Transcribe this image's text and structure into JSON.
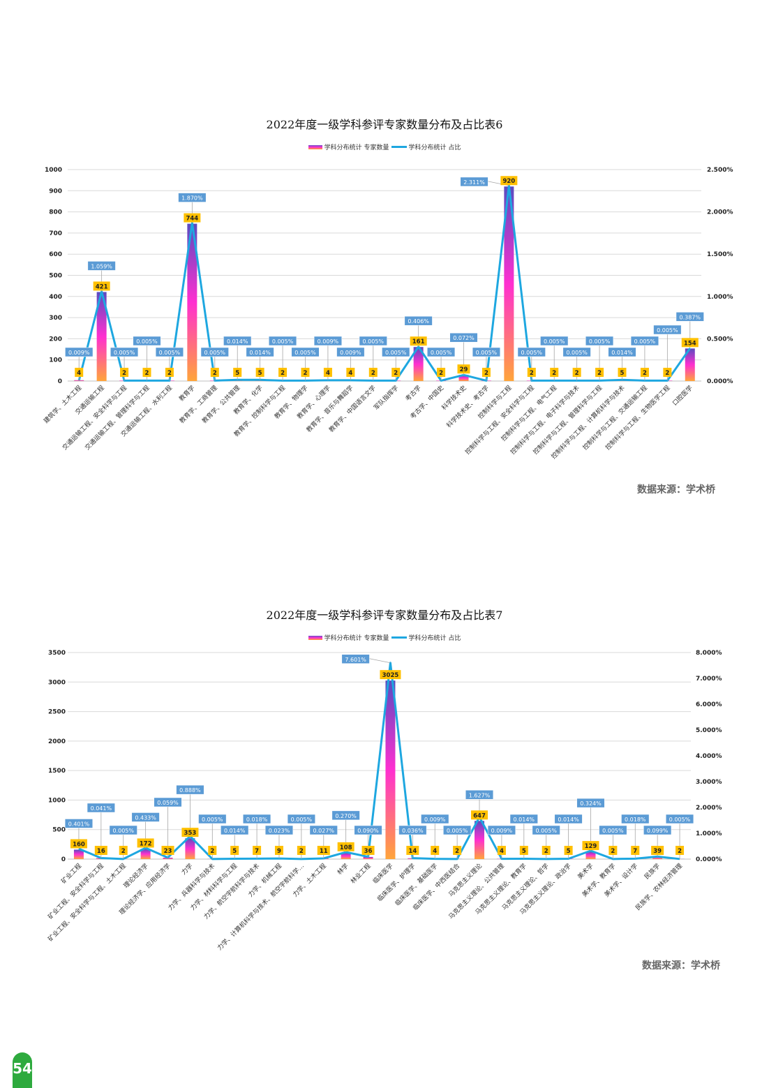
{
  "page_number": "54",
  "chart_data": [
    {
      "type": "bar",
      "title": "2022年度一级学科参评专家数量分布及占比表6",
      "legend": {
        "bar": "学科分布统计 专家数量",
        "line": "学科分布统计 占比",
        "placement": "top-center"
      },
      "source": "数据来源：学术桥",
      "ylim": [
        0,
        1000
      ],
      "yticks": [
        "0",
        "100",
        "200",
        "300",
        "400",
        "500",
        "600",
        "700",
        "800",
        "900",
        "1000"
      ],
      "y2lim": [
        0,
        2.5
      ],
      "y2ticks": [
        "0.000%",
        "0.500%",
        "1.000%",
        "1.500%",
        "2.000%",
        "2.500%"
      ],
      "categories": [
        "建筑学、土木工程",
        "交通运输工程",
        "交通运输工程、安全科学与工程",
        "交通运输工程、管理科学与工程",
        "交通运输工程、水利工程",
        "教育学",
        "教育学、工商管理",
        "教育学、公共管理",
        "教育学、化学",
        "教育学、控制科学与工程",
        "教育学、物理学",
        "教育学、心理学",
        "教育学、音乐与舞蹈学",
        "教育学、中国语言文学",
        "军队指挥学",
        "考古学",
        "考古学、中国史",
        "科学技术史",
        "科学技术史、考古学",
        "控制科学与工程",
        "控制科学与工程、安全科学与工程",
        "控制科学与工程、电气工程",
        "控制科学与工程、电子科学与技术",
        "控制科学与工程、管理科学与工程",
        "控制科学与工程、计算机科学与技术",
        "控制科学与工程、交通运输工程",
        "控制科学与工程、生物医学工程",
        "口腔医学"
      ],
      "values": [
        4,
        421,
        2,
        2,
        2,
        744,
        2,
        5,
        5,
        2,
        2,
        4,
        4,
        2,
        2,
        161,
        2,
        29,
        2,
        920,
        2,
        2,
        2,
        2,
        5,
        2,
        2,
        154
      ],
      "percent_labels": [
        "0.009%",
        "1.059%",
        "0.005%",
        "0.005%",
        "0.005%",
        "1.870%",
        "0.005%",
        "0.014%",
        "0.014%",
        "0.005%",
        "0.005%",
        "0.009%",
        "0.009%",
        "0.005%",
        "0.005%",
        "0.406%",
        "0.005%",
        "0.072%",
        "0.005%",
        "2.311%",
        "0.005%",
        "0.005%",
        "0.005%",
        "0.005%",
        "0.014%",
        "0.005%",
        "0.005%",
        "0.387%"
      ],
      "percents": [
        0.009,
        1.059,
        0.005,
        0.005,
        0.005,
        1.87,
        0.005,
        0.014,
        0.014,
        0.005,
        0.005,
        0.009,
        0.009,
        0.005,
        0.005,
        0.406,
        0.005,
        0.072,
        0.005,
        2.311,
        0.005,
        0.005,
        0.005,
        0.005,
        0.014,
        0.005,
        0.005,
        0.387
      ]
    },
    {
      "type": "bar",
      "title": "2022年度一级学科参评专家数量分布及占比表7",
      "legend": {
        "bar": "学科分布统计 专家数量",
        "line": "学科分布统计 占比",
        "placement": "top-center"
      },
      "source": "数据来源：学术桥",
      "ylim": [
        0,
        3500
      ],
      "yticks": [
        "0",
        "500",
        "1000",
        "1500",
        "2000",
        "2500",
        "3000",
        "3500"
      ],
      "y2lim": [
        0,
        8
      ],
      "y2ticks": [
        "0.000%",
        "1.000%",
        "2.000%",
        "3.000%",
        "4.000%",
        "5.000%",
        "6.000%",
        "7.000%",
        "8.000%"
      ],
      "categories": [
        "矿业工程",
        "矿业工程、安全科学与工程",
        "矿业工程、安全科学与工程、土木工程",
        "理论经济学",
        "理论经济学、应用经济学",
        "力学",
        "力学、兵器科学与技术",
        "力学、材料科学与工程",
        "力学、航空宇航科学与技术",
        "力学、机械工程",
        "力学、计算机科学与技术、航空宇航科学…",
        "力学、土木工程",
        "林学",
        "林业工程",
        "临床医学",
        "临床医学、护理学",
        "临床医学、基础医学",
        "临床医学、中西医结合",
        "马克思主义理论",
        "马克思主义理论、公共管理",
        "马克思主义理论、教育学",
        "马克思主义理论、哲学",
        "马克思主义理论、政治学",
        "美术学",
        "美术学、教育学",
        "美术学、设计学",
        "民族学",
        "民族学、农林经济管理"
      ],
      "values": [
        160,
        16,
        2,
        172,
        23,
        353,
        2,
        5,
        7,
        9,
        2,
        11,
        108,
        36,
        3025,
        14,
        4,
        2,
        647,
        4,
        5,
        2,
        5,
        129,
        2,
        7,
        39,
        2
      ],
      "percent_labels": [
        "0.401%",
        "0.041%",
        "0.005%",
        "0.433%",
        "0.059%",
        "0.888%",
        "0.005%",
        "0.014%",
        "0.018%",
        "0.023%",
        "0.005%",
        "0.027%",
        "0.270%",
        "0.090%",
        "7.601%",
        "0.036%",
        "0.009%",
        "0.005%",
        "1.627%",
        "0.009%",
        "0.014%",
        "0.005%",
        "0.014%",
        "0.324%",
        "0.005%",
        "0.018%",
        "0.099%",
        "0.005%"
      ],
      "percents": [
        0.401,
        0.041,
        0.005,
        0.433,
        0.059,
        0.888,
        0.005,
        0.014,
        0.018,
        0.023,
        0.005,
        0.027,
        0.27,
        0.09,
        7.601,
        0.036,
        0.009,
        0.005,
        1.627,
        0.009,
        0.014,
        0.005,
        0.014,
        0.324,
        0.005,
        0.018,
        0.099,
        0.005
      ]
    }
  ]
}
